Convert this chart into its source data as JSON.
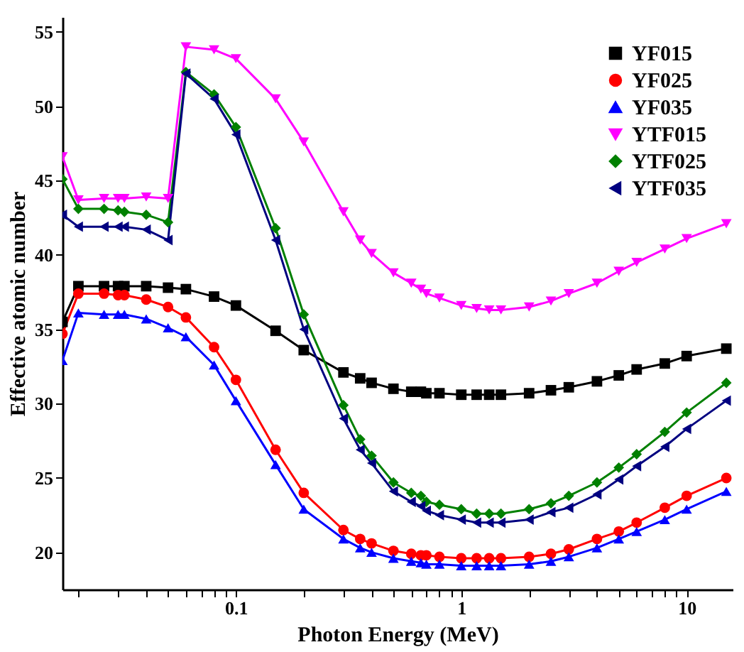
{
  "chart_data": {
    "type": "line",
    "xlabel": "Photon Energy (MeV)",
    "ylabel": "Effective atomic number",
    "log": "x",
    "x": [
      0.017,
      0.02,
      0.026,
      0.03,
      0.032,
      0.04,
      0.05,
      0.06,
      0.08,
      0.1,
      0.15,
      0.2,
      0.3,
      0.356,
      0.4,
      0.5,
      0.6,
      0.662,
      0.7,
      0.8,
      1,
      1.17,
      1.33,
      1.5,
      2,
      2.5,
      3,
      4,
      5,
      6,
      8,
      10,
      15
    ],
    "series": [
      {
        "name": "YF015",
        "color": "#000000",
        "marker": "square",
        "values": [
          35.5,
          37.9,
          37.9,
          37.9,
          37.9,
          37.9,
          37.8,
          37.7,
          37.2,
          36.6,
          34.9,
          33.6,
          32.1,
          31.7,
          31.4,
          31.0,
          30.8,
          30.8,
          30.7,
          30.7,
          30.6,
          30.6,
          30.6,
          30.6,
          30.7,
          30.9,
          31.1,
          31.5,
          31.9,
          32.3,
          32.7,
          33.2,
          33.7
        ]
      },
      {
        "name": "YF025",
        "color": "#ff0000",
        "marker": "circle",
        "values": [
          34.7,
          37.4,
          37.4,
          37.3,
          37.3,
          37.0,
          36.5,
          35.8,
          33.8,
          31.6,
          26.9,
          24.0,
          21.5,
          20.9,
          20.6,
          20.1,
          19.9,
          19.8,
          19.8,
          19.7,
          19.6,
          19.6,
          19.6,
          19.6,
          19.7,
          19.9,
          20.2,
          20.9,
          21.4,
          22.0,
          23.0,
          23.8,
          25.0
        ]
      },
      {
        "name": "YF035",
        "color": "#0000ff",
        "marker": "triangle",
        "values": [
          32.9,
          36.1,
          36.0,
          36.0,
          36.0,
          35.7,
          35.1,
          34.5,
          32.6,
          30.2,
          25.9,
          22.9,
          20.9,
          20.3,
          20.0,
          19.6,
          19.4,
          19.3,
          19.2,
          19.2,
          19.1,
          19.1,
          19.1,
          19.1,
          19.2,
          19.4,
          19.7,
          20.3,
          20.9,
          21.4,
          22.2,
          22.9,
          24.1
        ]
      },
      {
        "name": "YTF015",
        "color": "#ff00ff",
        "marker": "triangle_down",
        "values": [
          46.6,
          43.7,
          43.8,
          43.8,
          43.8,
          43.9,
          43.8,
          54.0,
          53.8,
          53.2,
          50.5,
          47.6,
          42.9,
          41.0,
          40.1,
          38.8,
          38.1,
          37.7,
          37.4,
          37.1,
          36.6,
          36.4,
          36.3,
          36.3,
          36.5,
          36.9,
          37.4,
          38.1,
          38.9,
          39.5,
          40.4,
          41.1,
          42.1
        ]
      },
      {
        "name": "YTF025",
        "color": "#008000",
        "marker": "diamond",
        "values": [
          45.1,
          43.1,
          43.1,
          43.0,
          42.9,
          42.7,
          42.2,
          52.3,
          50.8,
          48.6,
          41.8,
          36.0,
          29.9,
          27.6,
          26.5,
          24.7,
          24.0,
          23.8,
          23.4,
          23.2,
          22.9,
          22.6,
          22.6,
          22.6,
          22.9,
          23.3,
          23.8,
          24.7,
          25.7,
          26.6,
          28.1,
          29.4,
          31.4
        ]
      },
      {
        "name": "YTF035",
        "color": "#000080",
        "marker": "triangle_left",
        "values": [
          42.7,
          41.9,
          41.9,
          41.9,
          41.9,
          41.7,
          41.0,
          52.2,
          50.5,
          48.1,
          41.0,
          35.0,
          29.0,
          26.9,
          26.0,
          24.1,
          23.4,
          23.1,
          22.8,
          22.5,
          22.2,
          22.0,
          22.0,
          22.0,
          22.2,
          22.7,
          23.0,
          23.9,
          24.9,
          25.8,
          27.1,
          28.3,
          30.2
        ]
      }
    ],
    "xlim": [
      0.017,
      16
    ],
    "xticks": [
      {
        "value": 0.02,
        "label": null
      },
      {
        "value": 0.03,
        "label": null
      },
      {
        "value": 0.04,
        "label": null
      },
      {
        "value": 0.05,
        "label": null
      },
      {
        "value": 0.06,
        "label": null
      },
      {
        "value": 0.07,
        "label": null
      },
      {
        "value": 0.08,
        "label": null
      },
      {
        "value": 0.09,
        "label": null
      },
      0.1,
      {
        "value": 0.2,
        "label": null
      },
      {
        "value": 0.3,
        "label": null
      },
      {
        "value": 0.4,
        "label": null
      },
      {
        "value": 0.5,
        "label": null
      },
      {
        "value": 0.6,
        "label": null
      },
      {
        "value": 0.7,
        "label": null
      },
      {
        "value": 0.8,
        "label": null
      },
      {
        "value": 0.9,
        "label": null
      },
      1,
      {
        "value": 2,
        "label": null
      },
      {
        "value": 3,
        "label": null
      },
      {
        "value": 4,
        "label": null
      },
      {
        "value": 5,
        "label": null
      },
      {
        "value": 6,
        "label": null
      },
      {
        "value": 7,
        "label": null
      },
      {
        "value": 8,
        "label": null
      },
      {
        "value": 9,
        "label": null
      },
      10
    ],
    "ylim": [
      17.5,
      56
    ],
    "yticks": [
      20,
      25,
      30,
      35,
      40,
      45,
      50,
      55
    ],
    "grid": false,
    "legend": "top right",
    "line_style": "solid"
  }
}
